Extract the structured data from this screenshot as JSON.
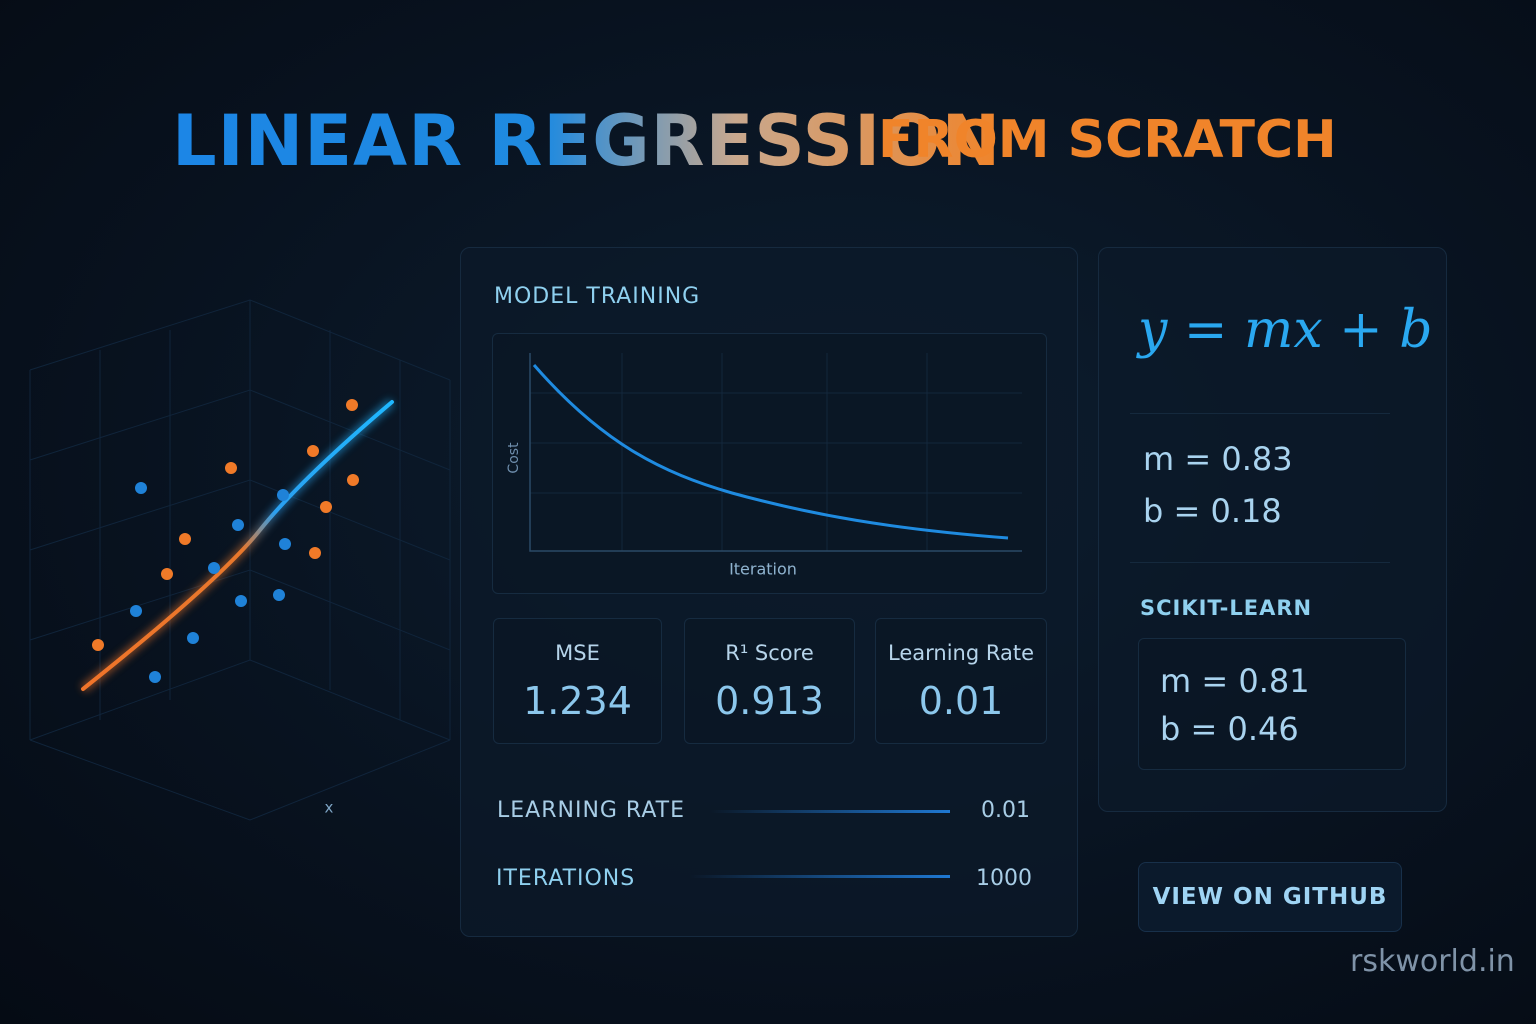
{
  "header": {
    "title_main": "LINEAR REGRESSION",
    "title_sub": "FROM SCRATCH"
  },
  "scatter": {
    "x_label": "x"
  },
  "training": {
    "title": "MODEL TRAINING",
    "chart": {
      "y_label": "Cost",
      "x_label": "Iteration"
    },
    "metrics": [
      {
        "label": "MSE",
        "value": 1.234
      },
      {
        "label": "R¹ Score",
        "value": 0.913
      },
      {
        "label": "Learning Rate",
        "value": 0.01
      }
    ],
    "params": [
      {
        "label": "LEARNING RATE",
        "value": 0.01
      },
      {
        "label": "ITERATIONS",
        "value": 1000
      }
    ]
  },
  "model": {
    "equation": "y = mx + b",
    "coefficients": [
      {
        "label": "m =",
        "value": 0.83
      },
      {
        "label": "b =",
        "value": 0.18
      }
    ]
  },
  "scikit": {
    "title": "SCIKIT-LEARN",
    "coefficients": [
      {
        "label": "m =",
        "value": 0.81
      },
      {
        "label": "b =",
        "value": 0.46
      }
    ]
  },
  "button": "VIEW ON GITHUB",
  "footer": "rskworld.in"
}
